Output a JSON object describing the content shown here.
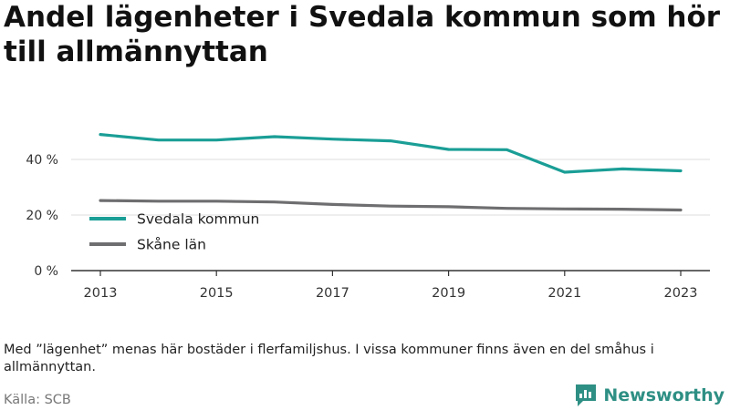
{
  "header": {
    "title": "Andel lägenheter i Svedala kommun som hör till allmännyttan"
  },
  "footer": {
    "note": "Med ”lägenhet” menas här bostäder i flerfamiljshus. I vissa kommuner finns även en del småhus i allmännyttan.",
    "source": "Källa: SCB",
    "brand": "Newsworthy",
    "brand_icon": "newsworthy-logo-icon"
  },
  "chart_data": {
    "type": "line",
    "x": [
      2013,
      2014,
      2015,
      2016,
      2017,
      2018,
      2019,
      2020,
      2021,
      2022,
      2023
    ],
    "x_tick_labels": [
      "2013",
      "2015",
      "2017",
      "2019",
      "2021",
      "2023"
    ],
    "y_tick_labels": [
      "0 %",
      "20 %",
      "40 %"
    ],
    "ylim": [
      0,
      50
    ],
    "grid": true,
    "legend_position": "center-left",
    "series": [
      {
        "name": "Svedala kommun",
        "color": "#1a9e96",
        "values": [
          49.0,
          47.0,
          47.0,
          48.2,
          47.3,
          46.7,
          43.6,
          43.5,
          35.4,
          36.6,
          35.9
        ]
      },
      {
        "name": "Skåne län",
        "color": "#6e6e70",
        "values": [
          25.2,
          25.0,
          25.0,
          24.7,
          23.8,
          23.2,
          23.0,
          22.4,
          22.2,
          22.1,
          21.8
        ]
      }
    ]
  }
}
